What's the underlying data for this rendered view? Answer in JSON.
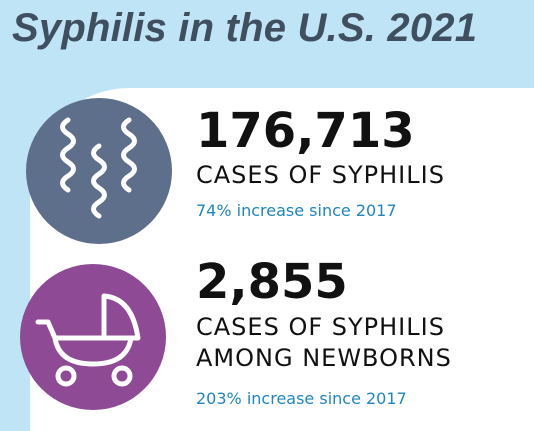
{
  "title": "Syphilis in the U.S. 2021",
  "colors": {
    "background": "#bfe4f6",
    "title": "#3f4f5f",
    "circle_1": "#5e6f8c",
    "circle_2": "#8e4a94",
    "increase_text": "#1f86c1"
  },
  "stats": [
    {
      "number": "176,713",
      "label_lines": [
        "CASES OF SYPHILIS"
      ],
      "increase": "74% increase since 2017",
      "icon": "spiral-bacteria-icon"
    },
    {
      "number": "2,855",
      "label_lines": [
        "CASES OF SYPHILIS",
        "AMONG NEWBORNS"
      ],
      "increase": "203% increase since 2017",
      "icon": "baby-stroller-icon"
    }
  ]
}
